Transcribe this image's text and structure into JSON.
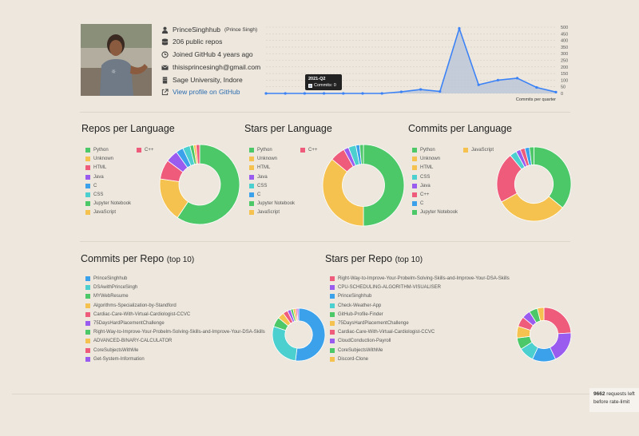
{
  "profile": {
    "username": "PrinceSinghhub",
    "fullname": "(Prince Singh)",
    "repos": "206 public repos",
    "joined": "Joined GitHub 4 years ago",
    "email": "thisisprincesingh@gmail.com",
    "location": "Sage University, Indore",
    "profile_link": "View profile on GitHub"
  },
  "tooltip": {
    "title": "2021-Q2",
    "text": "Commits: 0"
  },
  "rate_limit": {
    "count": "9662",
    "text1": "requests left",
    "text2": "before rate-limit"
  },
  "colors": {
    "background": "#ede7dd",
    "line": "#3b82f6",
    "area": "#b9c6da"
  },
  "headings": {
    "repos_per_language": "Repos per Language",
    "stars_per_language": "Stars per Language",
    "commits_per_language": "Commits per Language",
    "commits_per_repo": "Commits per Repo",
    "stars_per_repo": "Stars per Repo",
    "top10": "(top 10)"
  },
  "chart_data": [
    {
      "id": "commits_timeline",
      "type": "area",
      "xlabel": "Commits per quarter",
      "ylim": [
        0,
        500
      ],
      "yticks": [
        "500",
        "450",
        "400",
        "350",
        "300",
        "250",
        "200",
        "150",
        "100",
        "50",
        "0"
      ],
      "values": [
        0,
        0,
        0,
        0,
        0,
        0,
        0,
        12,
        30,
        15,
        490,
        65,
        100,
        115,
        45,
        10
      ]
    },
    {
      "id": "repos_per_language",
      "type": "pie",
      "legend": [
        {
          "label": "Python",
          "color": "#4cc869"
        },
        {
          "label": "Unknown",
          "color": "#f5c24f"
        },
        {
          "label": "HTML",
          "color": "#ef5b7b"
        },
        {
          "label": "Java",
          "color": "#9a5bef"
        },
        {
          "label": "C",
          "color": "#3ba1ea"
        },
        {
          "label": "CSS",
          "color": "#4ccfcf"
        },
        {
          "label": "Jupyter Notebook",
          "color": "#4cc869"
        },
        {
          "label": "JavaScript",
          "color": "#f5c24f"
        },
        {
          "label": "C++",
          "color": "#ef5b7b"
        }
      ],
      "slices": [
        {
          "color": "#4cc869",
          "value": 60
        },
        {
          "color": "#f5c24f",
          "value": 18
        },
        {
          "color": "#ef5b7b",
          "value": 8
        },
        {
          "color": "#9a5bef",
          "value": 5
        },
        {
          "color": "#3ba1ea",
          "value": 3
        },
        {
          "color": "#4ccfcf",
          "value": 3
        },
        {
          "color": "#4cc869",
          "value": 1.5
        },
        {
          "color": "#f5c24f",
          "value": 1
        },
        {
          "color": "#ef5b7b",
          "value": 1.5
        }
      ]
    },
    {
      "id": "stars_per_language",
      "type": "pie",
      "legend": [
        {
          "label": "Python",
          "color": "#4cc869"
        },
        {
          "label": "Unknown",
          "color": "#f5c24f"
        },
        {
          "label": "HTML",
          "color": "#f5c24f"
        },
        {
          "label": "Java",
          "color": "#9a5bef"
        },
        {
          "label": "CSS",
          "color": "#4ccfcf"
        },
        {
          "label": "C",
          "color": "#3ba1ea"
        },
        {
          "label": "Jupyter Notebook",
          "color": "#4cc869"
        },
        {
          "label": "JavaScript",
          "color": "#f5c24f"
        },
        {
          "label": "C++",
          "color": "#ef5b7b"
        }
      ],
      "slices": [
        {
          "color": "#4cc869",
          "value": 50
        },
        {
          "color": "#f5c24f",
          "value": 36
        },
        {
          "color": "#ef5b7b",
          "value": 6
        },
        {
          "color": "#9a5bef",
          "value": 2
        },
        {
          "color": "#4ccfcf",
          "value": 3
        },
        {
          "color": "#3ba1ea",
          "value": 1.5
        },
        {
          "color": "#4cc869",
          "value": 1.5
        }
      ]
    },
    {
      "id": "commits_per_language",
      "type": "pie",
      "legend": [
        {
          "label": "Python",
          "color": "#4cc869"
        },
        {
          "label": "Unknown",
          "color": "#f5c24f"
        },
        {
          "label": "HTML",
          "color": "#f5c24f"
        },
        {
          "label": "CSS",
          "color": "#4ccfcf"
        },
        {
          "label": "Java",
          "color": "#9a5bef"
        },
        {
          "label": "C++",
          "color": "#ef5b7b"
        },
        {
          "label": "C",
          "color": "#3ba1ea"
        },
        {
          "label": "Jupyter Notebook",
          "color": "#4cc869"
        },
        {
          "label": "JavaScript",
          "color": "#f5c24f"
        }
      ],
      "slices": [
        {
          "color": "#4cc869",
          "value": 36
        },
        {
          "color": "#f5c24f",
          "value": 31
        },
        {
          "color": "#ef5b7b",
          "value": 22
        },
        {
          "color": "#4ccfcf",
          "value": 3
        },
        {
          "color": "#9a5bef",
          "value": 2
        },
        {
          "color": "#ef5b7b",
          "value": 2
        },
        {
          "color": "#3ba1ea",
          "value": 2
        },
        {
          "color": "#4cc869",
          "value": 2
        }
      ]
    },
    {
      "id": "commits_per_repo",
      "type": "pie",
      "legend": [
        {
          "label": "PrinceSinghhub",
          "color": "#3ba1ea"
        },
        {
          "label": "DSAwithPrinceSingh",
          "color": "#4ccfcf"
        },
        {
          "label": "MYWebResume",
          "color": "#4cc869"
        },
        {
          "label": "Algorithms-Specialization-by-Standford",
          "color": "#f5c24f"
        },
        {
          "label": "Cardiac-Care-With-Virtual-Cardiologist-CCVC",
          "color": "#ef5b7b"
        },
        {
          "label": "75DaysHardPlacementChallenge",
          "color": "#9a5bef"
        },
        {
          "label": "Right-Way-to-Improve-Your-Probelm-Solving-Skills-and-Improve-Your-DSA-Skills",
          "color": "#4cc869"
        },
        {
          "label": "ADVANCED-BINARY-CALCULATOR",
          "color": "#f5c24f"
        },
        {
          "label": "CoreSubjectsWithMe",
          "color": "#ef5b7b"
        },
        {
          "label": "Get-System-Information",
          "color": "#9a5bef"
        }
      ],
      "slices": [
        {
          "color": "#3ba1ea",
          "value": 52
        },
        {
          "color": "#4ccfcf",
          "value": 28
        },
        {
          "color": "#4cc869",
          "value": 6
        },
        {
          "color": "#f5c24f",
          "value": 4
        },
        {
          "color": "#ef5b7b",
          "value": 3
        },
        {
          "color": "#9a5bef",
          "value": 2
        },
        {
          "color": "#4cc869",
          "value": 1.5
        },
        {
          "color": "#f5c24f",
          "value": 1.5
        },
        {
          "color": "#ef5b7b",
          "value": 1
        },
        {
          "color": "#9a5bef",
          "value": 1
        }
      ]
    },
    {
      "id": "stars_per_repo",
      "type": "pie",
      "legend": [
        {
          "label": "Right-Way-to-Improve-Your-Probelm-Solving-Skills-and-Improve-Your-DSA-Skills",
          "color": "#ef5b7b"
        },
        {
          "label": "CPU-SCHEDULING-ALGORITHM-VISUALISER",
          "color": "#9a5bef"
        },
        {
          "label": "PrinceSinghhub",
          "color": "#3ba1ea"
        },
        {
          "label": "Check-Weather-App",
          "color": "#4ccfcf"
        },
        {
          "label": "GitHub-Profile-Finder",
          "color": "#4cc869"
        },
        {
          "label": "75DaysHardPlacementChallenge",
          "color": "#f5c24f"
        },
        {
          "label": "Cardiac-Care-With-Virtual-Cardiologist-CCVC",
          "color": "#ef5b7b"
        },
        {
          "label": "CloudConduction-Payroll",
          "color": "#9a5bef"
        },
        {
          "label": "CoreSubjectsWithMe",
          "color": "#4cc869"
        },
        {
          "label": "Discord-Clone",
          "color": "#f5c24f"
        }
      ],
      "slices": [
        {
          "color": "#ef5b7b",
          "value": 24
        },
        {
          "color": "#9a5bef",
          "value": 19
        },
        {
          "color": "#3ba1ea",
          "value": 14
        },
        {
          "color": "#4ccfcf",
          "value": 9
        },
        {
          "color": "#4cc869",
          "value": 7
        },
        {
          "color": "#f5c24f",
          "value": 7
        },
        {
          "color": "#ef5b7b",
          "value": 6
        },
        {
          "color": "#9a5bef",
          "value": 5
        },
        {
          "color": "#4cc869",
          "value": 5
        },
        {
          "color": "#f5c24f",
          "value": 4
        }
      ]
    }
  ]
}
